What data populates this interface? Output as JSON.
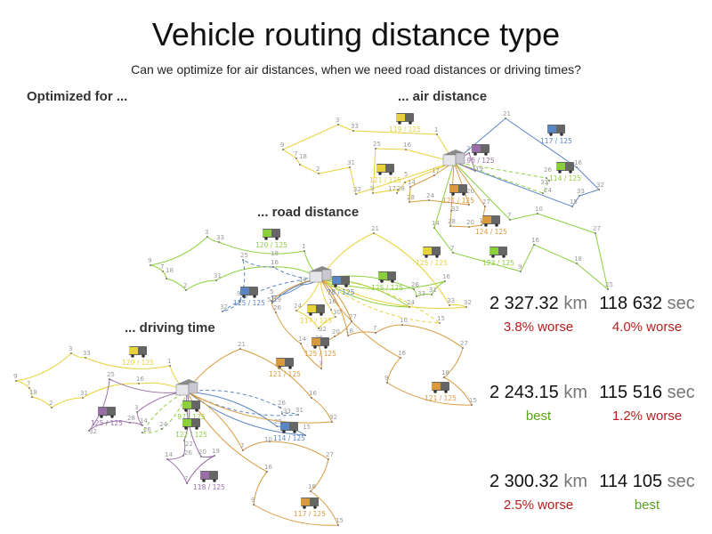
{
  "title": "Vehicle routing distance type",
  "subtitle": "Can we optimize for air distances, when we need road distances or driving times?",
  "labels": {
    "optimized_for": "Optimized for ...",
    "air": "... air distance",
    "road": "... road distance",
    "driving": "... driving time"
  },
  "colors": {
    "yellow": "#e8d23a",
    "green": "#8ccf3c",
    "blue": "#5b86c4",
    "purple": "#9a6fa8",
    "orange": "#d99a3e",
    "worse": "#b51e1e",
    "best": "#5aa31c"
  },
  "results": [
    {
      "distance": "2 327.32",
      "distance_unit": "km",
      "distance_cmp": "3.8% worse",
      "time": "118 632",
      "time_unit": "sec",
      "time_cmp": "4.0% worse"
    },
    {
      "distance": "2 243.15",
      "distance_unit": "km",
      "distance_cmp": "best",
      "time": "115 516",
      "time_unit": "sec",
      "time_cmp": "1.2% worse"
    },
    {
      "distance": "2 300.32",
      "distance_unit": "km",
      "distance_cmp": "2.5% worse",
      "time": "114 105",
      "time_unit": "sec",
      "time_cmp": "best"
    }
  ],
  "maps": {
    "air": {
      "trucks": [
        {
          "color": "yellow",
          "load": "119 / 125"
        },
        {
          "color": "blue",
          "load": "117 / 125"
        },
        {
          "color": "purple",
          "load": "95 / 125"
        },
        {
          "color": "green",
          "load": "114 / 125"
        },
        {
          "color": "yellow",
          "load": "121 / 125"
        },
        {
          "color": "orange",
          "load": "121 / 125"
        },
        {
          "color": "orange",
          "load": "124 / 125"
        },
        {
          "color": "green",
          "load": "123 / 125"
        }
      ],
      "routes": [
        {
          "color": "yellow",
          "stops": [
            "1",
            "33",
            "3",
            "9",
            "7",
            "18",
            "2",
            "31",
            "32"
          ]
        },
        {
          "color": "yellow",
          "stops": [
            "16",
            "25",
            "9",
            "28",
            "17",
            "5"
          ]
        },
        {
          "color": "blue",
          "stops": [
            "21",
            "16",
            "32",
            "33",
            "15"
          ]
        },
        {
          "color": "purple",
          "stops": [
            "25",
            "19"
          ]
        },
        {
          "color": "green",
          "dashed": true,
          "stops": [
            "26",
            "33",
            "24"
          ]
        },
        {
          "color": "green",
          "stops": [
            "7",
            "10",
            "27",
            "25",
            "18",
            "16",
            "9",
            "7",
            "14"
          ]
        },
        {
          "color": "orange",
          "stops": [
            "17",
            "14",
            "28",
            "24",
            "20"
          ]
        },
        {
          "color": "orange",
          "stops": [
            "32",
            "28",
            "20",
            "19",
            "27"
          ]
        }
      ]
    },
    "road": {
      "trucks": [
        {
          "color": "green",
          "load": "120 / 125"
        },
        {
          "color": "yellow",
          "load": "125 / 125"
        },
        {
          "color": "green",
          "load": "125 / 125"
        },
        {
          "color": "blue",
          "load": "78 / 125"
        },
        {
          "color": "blue",
          "load": "125 / 125"
        },
        {
          "color": "yellow",
          "load": "117 / 125"
        },
        {
          "color": "orange",
          "load": "125 / 125"
        },
        {
          "color": "orange",
          "load": "121 / 125"
        },
        {
          "color": "orange",
          "load": "121 / 125"
        }
      ],
      "routes": [
        {
          "color": "green",
          "stops": [
            "1",
            "33",
            "3",
            "9",
            "7",
            "18",
            "2",
            "31",
            "16"
          ]
        },
        {
          "color": "green",
          "stops": [
            "26",
            "33",
            "31",
            "16"
          ]
        },
        {
          "color": "green",
          "stops": [
            "24"
          ]
        },
        {
          "color": "yellow",
          "stops": [
            "21",
            "33",
            "32"
          ]
        },
        {
          "color": "yellow",
          "dashed": true,
          "stops": [
            "15"
          ]
        },
        {
          "color": "blue",
          "dashed": true,
          "stops": [
            "18",
            "25",
            "9",
            "32"
          ]
        },
        {
          "color": "blue",
          "stops": [
            "17",
            "5",
            "19"
          ]
        },
        {
          "color": "yellow",
          "stops": [
            "24",
            "32",
            "30",
            "16"
          ]
        },
        {
          "color": "orange",
          "stops": [
            "27",
            "20",
            "26",
            "7",
            "14",
            "26",
            "5"
          ]
        },
        {
          "color": "orange",
          "stops": [
            "18",
            "7",
            "10",
            "27",
            "18",
            "15",
            "9",
            "16"
          ]
        }
      ]
    },
    "driving": {
      "trucks": [
        {
          "color": "yellow",
          "load": "120 / 125"
        },
        {
          "color": "purple",
          "load": "125 / 125"
        },
        {
          "color": "green",
          "load": "97 / 125"
        },
        {
          "color": "green",
          "load": "122 / 125"
        },
        {
          "color": "blue",
          "load": "114 / 125"
        },
        {
          "color": "purple",
          "load": "118 / 125"
        },
        {
          "color": "orange",
          "load": "117 / 125"
        }
      ],
      "routes": [
        {
          "color": "yellow",
          "stops": [
            "1",
            "33",
            "3",
            "9",
            "7",
            "18",
            "2",
            "31",
            "16"
          ]
        },
        {
          "color": "purple",
          "stops": [
            "25",
            "32",
            "9",
            "28",
            "14",
            "3"
          ]
        },
        {
          "color": "purple",
          "stops": [
            "22",
            "26",
            "14",
            "7",
            "19",
            "20"
          ]
        },
        {
          "color": "green",
          "dashed": true,
          "stops": [
            "24",
            "26"
          ]
        },
        {
          "color": "blue",
          "dashed": true,
          "stops": [
            "26",
            "33",
            "31"
          ]
        },
        {
          "color": "blue",
          "stops": [
            "29",
            "15"
          ]
        },
        {
          "color": "orange",
          "stops": [
            "21",
            "16",
            "32"
          ]
        },
        {
          "color": "orange",
          "stops": [
            "7",
            "10",
            "27",
            "18",
            "15",
            "9",
            "16"
          ]
        }
      ]
    }
  }
}
